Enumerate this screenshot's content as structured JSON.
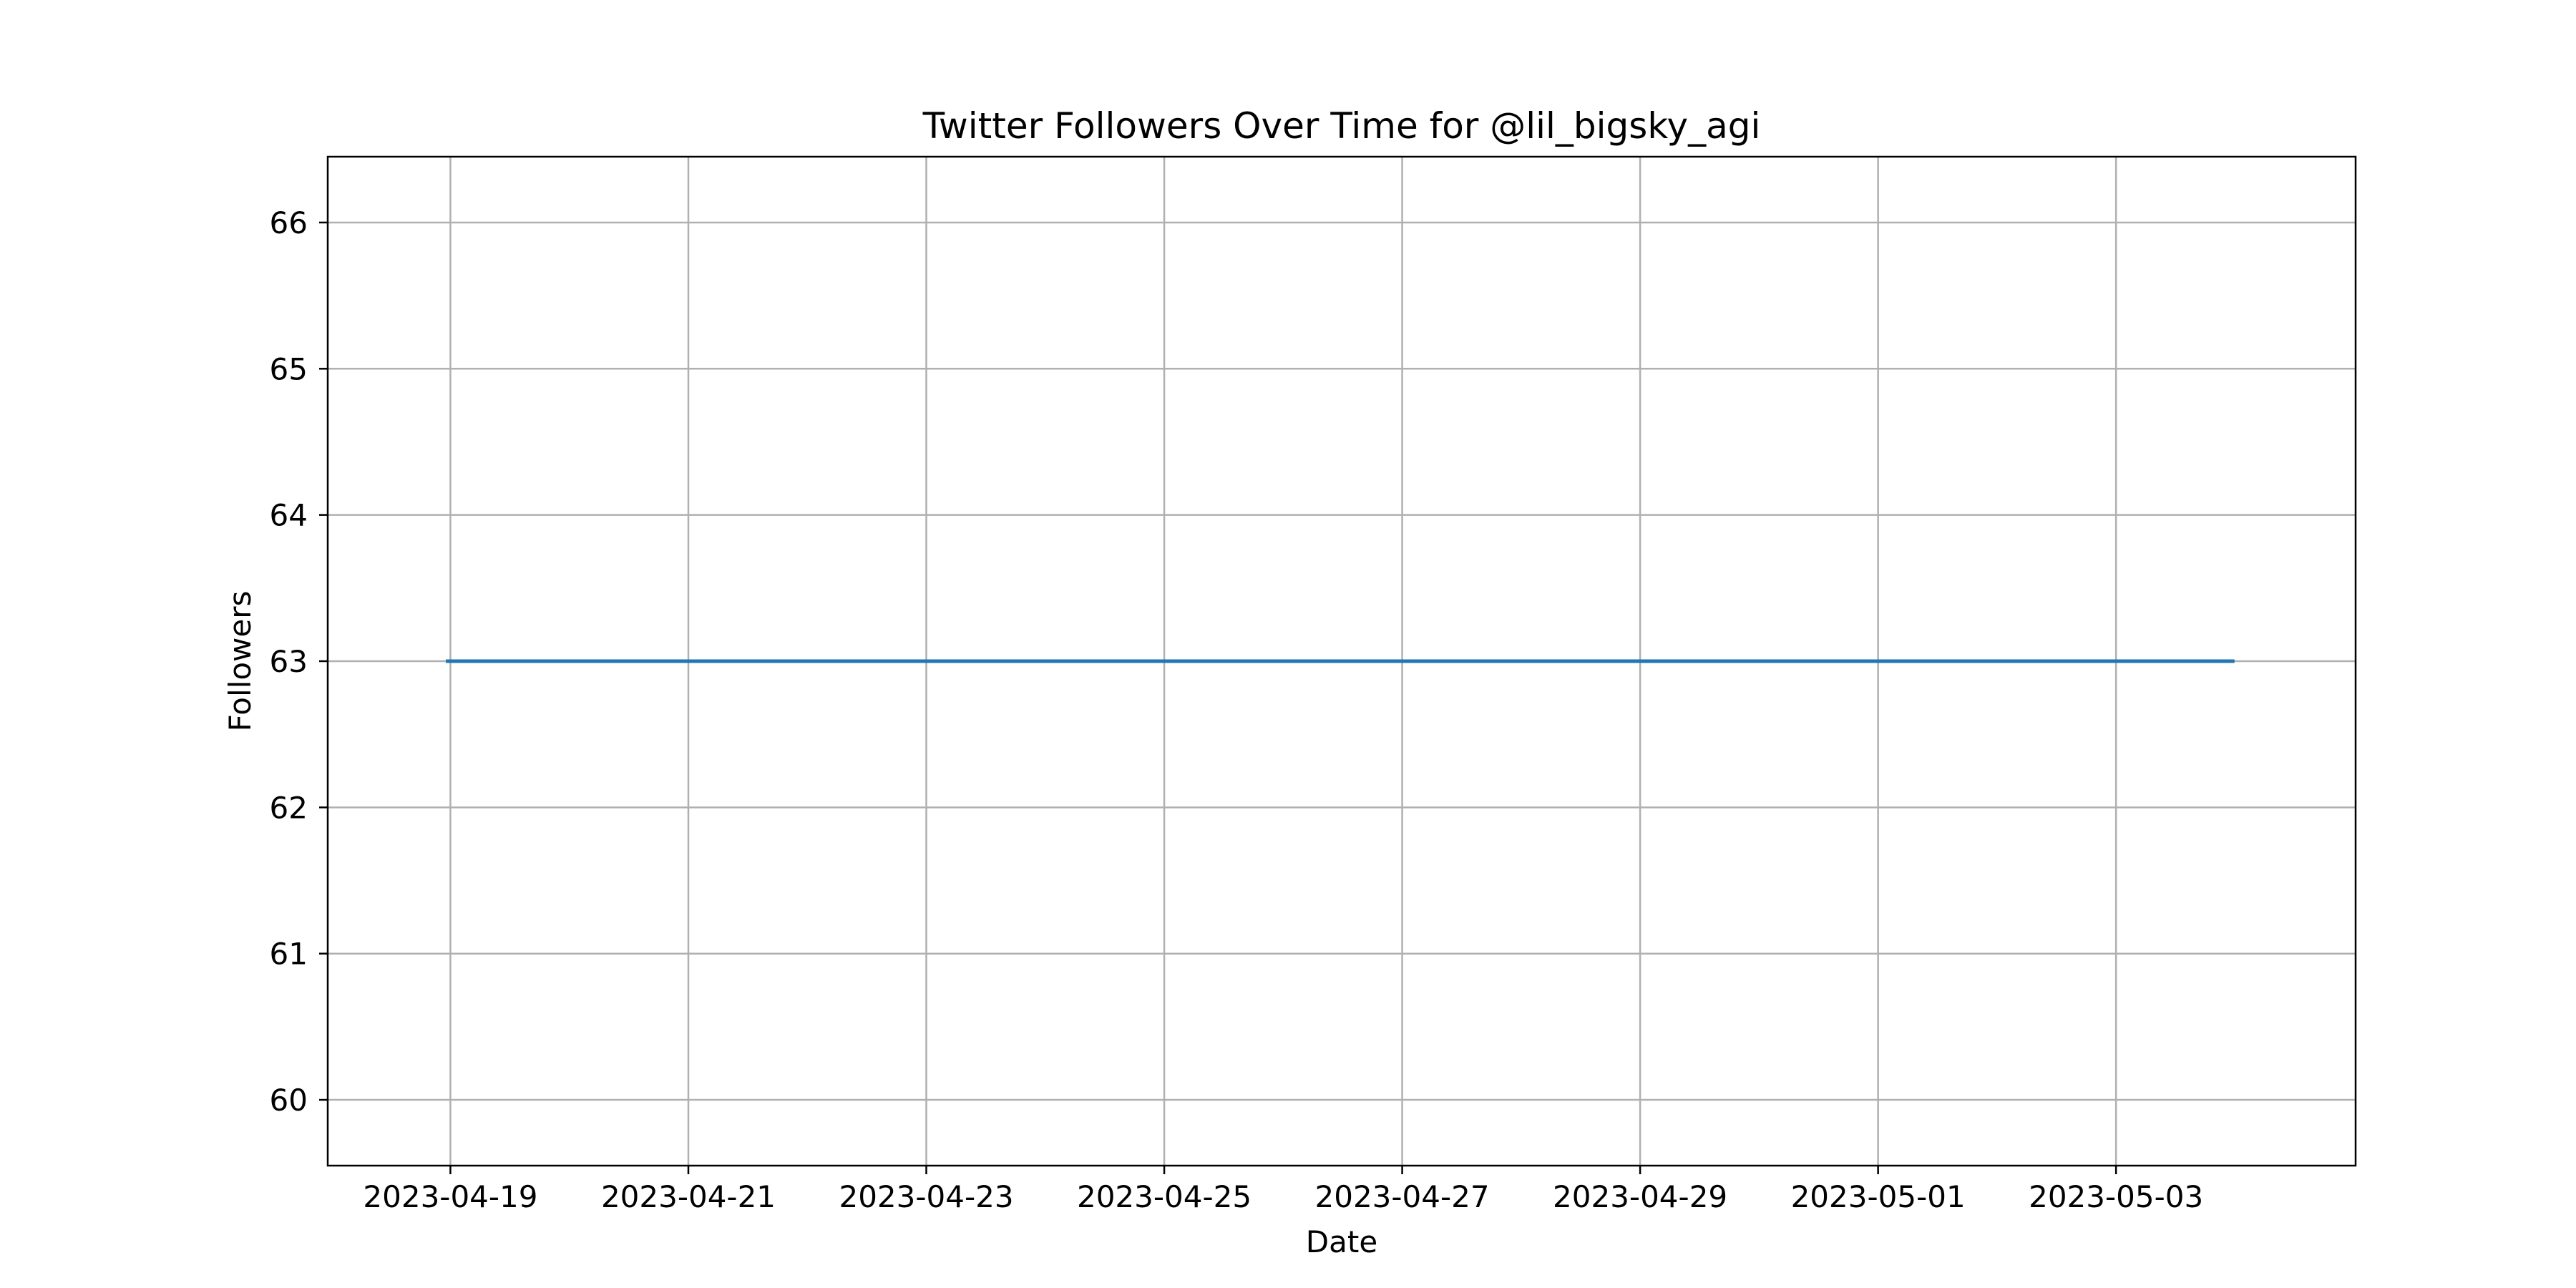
{
  "chart_data": {
    "type": "line",
    "title": "Twitter Followers Over Time for @lil_bigsky_agi",
    "xlabel": "Date",
    "ylabel": "Followers",
    "grid": true,
    "xlim": [
      "2023-04-17T23:15",
      "2023-05-05T00:20"
    ],
    "ylim": [
      59.55,
      66.45
    ],
    "x_ticks": [
      "2023-04-19",
      "2023-04-21",
      "2023-04-23",
      "2023-04-25",
      "2023-04-27",
      "2023-04-29",
      "2023-05-01",
      "2023-05-03"
    ],
    "y_ticks": [
      60,
      61,
      62,
      63,
      64,
      65,
      66
    ],
    "series": [
      {
        "color": "#1f77b4",
        "x": [
          "2023-04-18T23:05",
          "2023-05-03T23:55"
        ],
        "values": [
          63,
          63
        ]
      }
    ]
  }
}
